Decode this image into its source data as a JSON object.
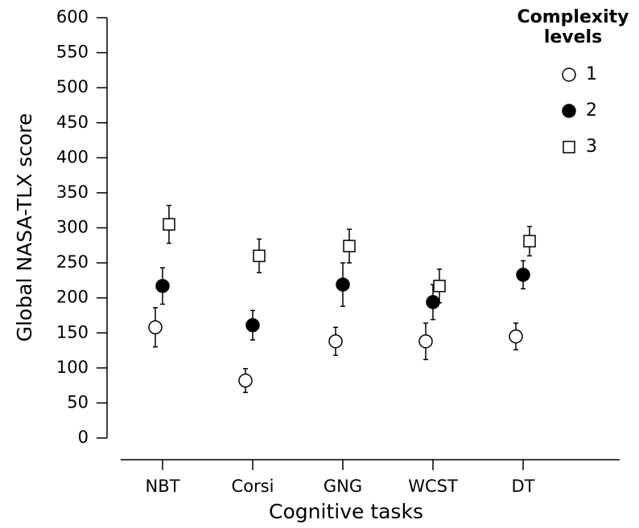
{
  "chart_data": {
    "type": "scatter",
    "x_label": "Cognitive tasks",
    "y_label": "Global NASA-TLX score",
    "categories": [
      "NBT",
      "Corsi",
      "GNG",
      "WCST",
      "DT"
    ],
    "ylim": [
      0,
      600
    ],
    "yticks": [
      0,
      50,
      100,
      150,
      200,
      250,
      300,
      350,
      400,
      450,
      500,
      550,
      600
    ],
    "legend_title": [
      "Complexity",
      "levels"
    ],
    "legend_position": "upper right",
    "series": [
      {
        "name": "1",
        "color": "#ffffff",
        "marker": "circle",
        "values": [
          158,
          82,
          138,
          138,
          145
        ],
        "errors": [
          28,
          17,
          20,
          26,
          19
        ]
      },
      {
        "name": "2",
        "color": "#000000",
        "marker": "circle",
        "values": [
          217,
          161,
          219,
          194,
          233
        ],
        "errors": [
          26,
          21,
          31,
          25,
          20
        ]
      },
      {
        "name": "3",
        "color": "#ffffff",
        "marker": "square",
        "values": [
          305,
          260,
          274,
          217,
          281
        ],
        "errors": [
          27,
          24,
          24,
          24,
          21
        ]
      }
    ]
  }
}
